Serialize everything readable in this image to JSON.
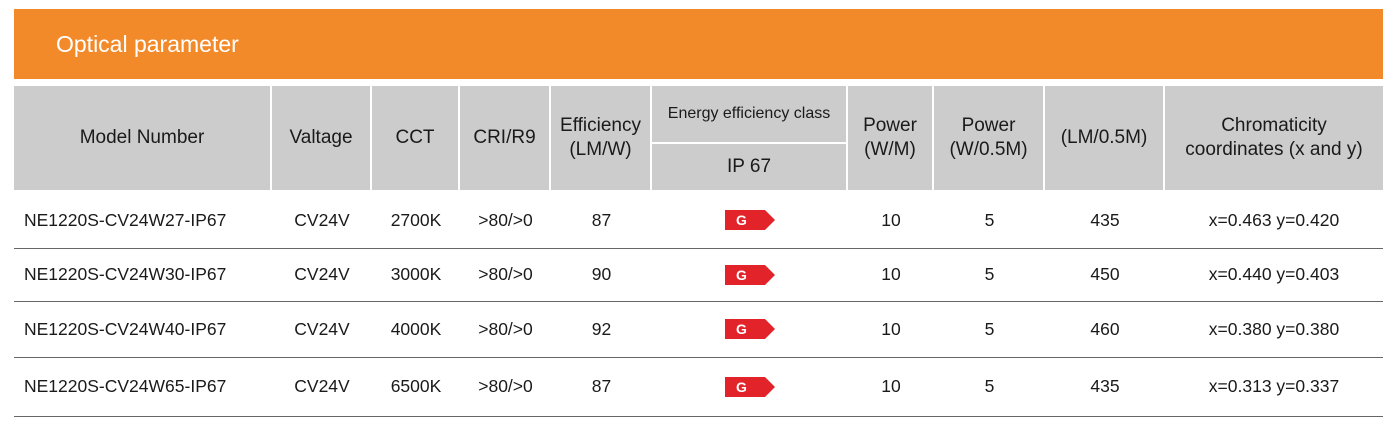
{
  "section": {
    "title": "Optical parameter"
  },
  "headers": {
    "model": "Model Number",
    "voltage": "Valtage",
    "cct": "CCT",
    "cri": "CRI/R9",
    "efficiency_line1": "Efficiency",
    "efficiency_line2": "(LM/W)",
    "energy_class": "Energy efficiency class",
    "energy_sub": "IP 67",
    "power_line1": "Power",
    "power_line2": "(W/M)",
    "power05_line1": "Power",
    "power05_line2": "(W/0.5M)",
    "lumen": "(LM/0.5M)",
    "chroma_line1": "Chromaticity",
    "chroma_line2": "coordinates (x and y)"
  },
  "rows": [
    {
      "model": "NE1220S-CV24W27-IP67",
      "voltage": "CV24V",
      "cct": "2700K",
      "cri": ">80/>0",
      "efficiency": "87",
      "energy_class": "G",
      "power": "10",
      "power05": "5",
      "lumen": "435",
      "chroma": "x=0.463 y=0.420"
    },
    {
      "model": "NE1220S-CV24W30-IP67",
      "voltage": "CV24V",
      "cct": "3000K",
      "cri": ">80/>0",
      "efficiency": "90",
      "energy_class": "G",
      "power": "10",
      "power05": "5",
      "lumen": "450",
      "chroma": "x=0.440 y=0.403"
    },
    {
      "model": "NE1220S-CV24W40-IP67",
      "voltage": "CV24V",
      "cct": "4000K",
      "cri": ">80/>0",
      "efficiency": "92",
      "energy_class": "G",
      "power": "10",
      "power05": "5",
      "lumen": "460",
      "chroma": "x=0.380 y=0.380"
    },
    {
      "model": "NE1220S-CV24W65-IP67",
      "voltage": "CV24V",
      "cct": "6500K",
      "cri": ">80/>0",
      "efficiency": "87",
      "energy_class": "G",
      "power": "10",
      "power05": "5",
      "lumen": "435",
      "chroma": "x=0.313 y=0.337"
    }
  ],
  "colors": {
    "banner": "#f28a2a",
    "header_bg": "#cccccc",
    "badge": "#e3232a"
  }
}
